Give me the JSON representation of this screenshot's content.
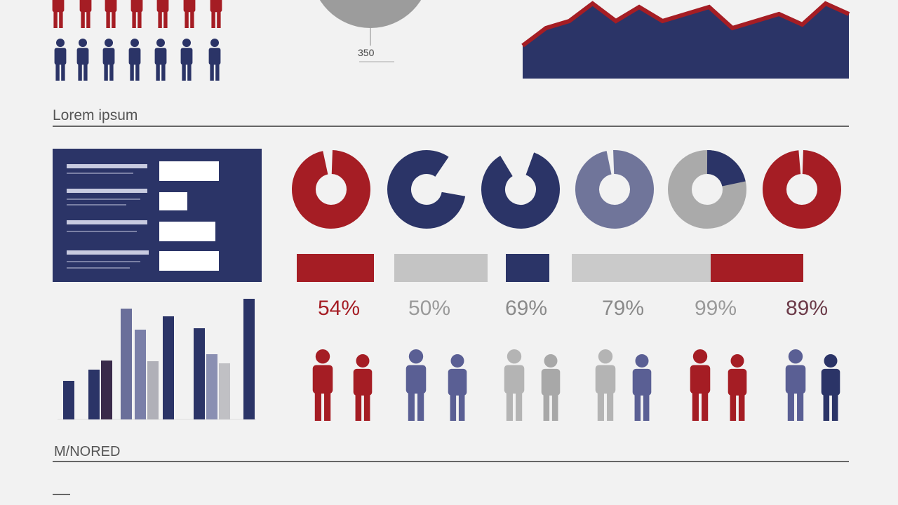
{
  "header": {
    "pie_label": "350"
  },
  "area_chart": {
    "values": [
      47,
      72,
      82,
      107,
      82,
      102,
      82,
      92,
      102,
      72,
      82,
      92,
      77,
      107,
      92
    ]
  },
  "section_title": "Lorem ipsum",
  "stats": [
    {
      "label": "54%",
      "color": "#a51d24"
    },
    {
      "label": "50%",
      "color": "#9a9a9a"
    },
    {
      "label": "69%",
      "color": "#8a8a8a"
    },
    {
      "label": "79%",
      "color": "#8a8a8a"
    },
    {
      "label": "99%",
      "color": "#9a9a9a"
    },
    {
      "label": "89%",
      "color": "#6b3a48"
    }
  ],
  "bar_chart": {
    "values": [
      55,
      71,
      84,
      158,
      128,
      83,
      147,
      130,
      93,
      80,
      172
    ],
    "colors": [
      "#2b3467",
      "#2b3467",
      "#3a2a4a",
      "#6a6f9a",
      "#7a7fa8",
      "#b0b0b8",
      "#2b3467",
      "#2b3467",
      "#8a8fb2",
      "#c0c0c4",
      "#2b3467"
    ]
  },
  "footer_title": "M/NORED"
}
